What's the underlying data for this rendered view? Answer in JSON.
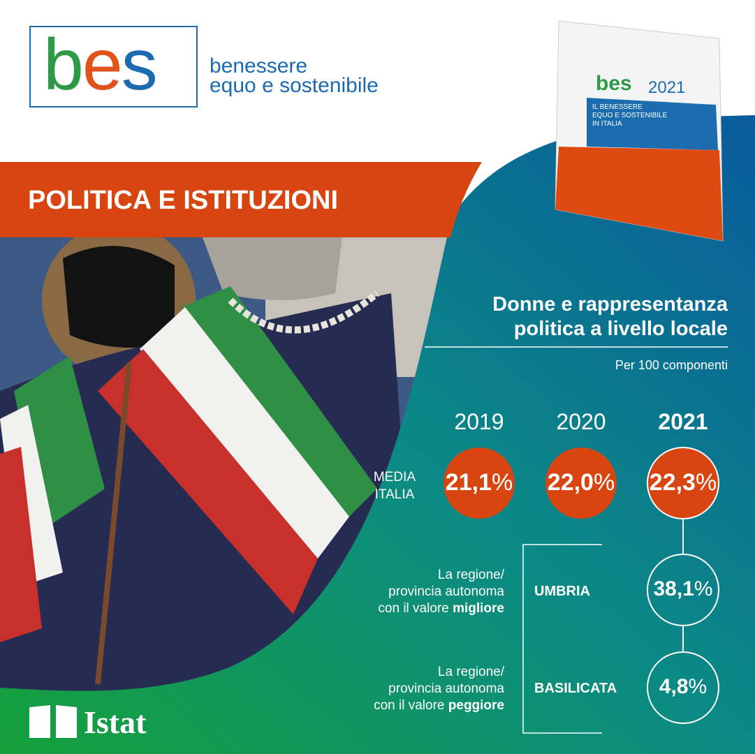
{
  "logo": {
    "mark": [
      "b",
      "e",
      "s"
    ],
    "tagline": [
      "benessere",
      "equo e sostenibile"
    ]
  },
  "book": {
    "mark": "bes",
    "year": "2021",
    "title": [
      "IL BENESSERE",
      "EQUO E SOSTENIBILE",
      "IN ITALIA"
    ]
  },
  "section_title": "POLITICA E ISTITUZIONI",
  "infographic": {
    "title": [
      "Donne e rappresentanza",
      "politica a livello locale"
    ],
    "subtitle": "Per 100 componenti",
    "years": [
      "2019",
      "2020",
      "2021"
    ],
    "average_label": [
      "MEDIA",
      "ITALIA"
    ],
    "average": [
      {
        "value": "21,1",
        "unit": "%"
      },
      {
        "value": "22,0",
        "unit": "%"
      },
      {
        "value": "22,3",
        "unit": "%"
      }
    ],
    "extremes": [
      {
        "description": [
          "La regione/",
          "provincia autonoma",
          "con il valore"
        ],
        "emphasis": "migliore",
        "region": "UMBRIA",
        "value": "38,1",
        "unit": "%"
      },
      {
        "description": [
          "La regione/",
          "provincia autonoma",
          "con il valore"
        ],
        "emphasis": "peggiore",
        "region": "BASILICATA",
        "value": "4,8",
        "unit": "%"
      }
    ]
  },
  "footer": {
    "brand": "Istat"
  }
}
